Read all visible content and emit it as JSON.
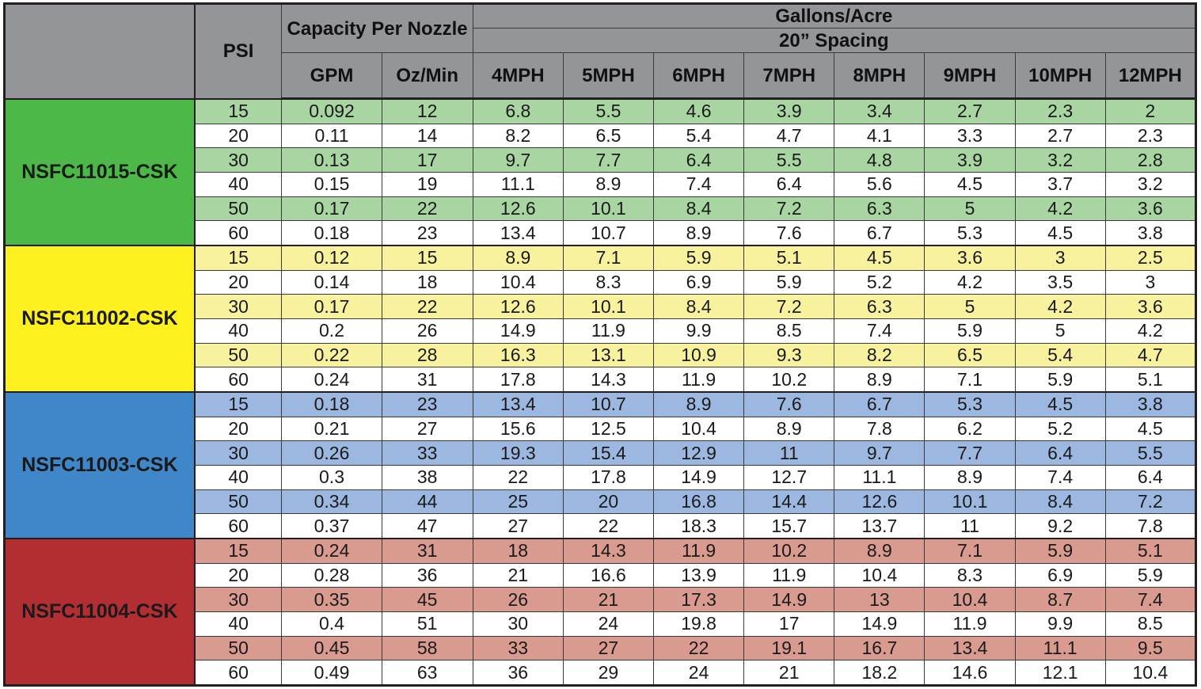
{
  "header": {
    "psi": "PSI",
    "capacity": "Capacity Per Nozzle",
    "gallons": "Gallons/Acre",
    "spacing": "20” Spacing",
    "gpm": "GPM",
    "oz_min": "Oz/Min",
    "speeds": [
      "4MPH",
      "5MPH",
      "6MPH",
      "7MPH",
      "8MPH",
      "9MPH",
      "10MPH",
      "12MPH"
    ]
  },
  "groups": [
    {
      "name": "NSFC11015-CSK",
      "color": "#4cb848",
      "tint": "#a8d5a2",
      "rows": [
        {
          "psi": "15",
          "gpm": "0.092",
          "oz": "12",
          "gpa": [
            "6.8",
            "5.5",
            "4.6",
            "3.9",
            "3.4",
            "2.7",
            "2.3",
            "2"
          ]
        },
        {
          "psi": "20",
          "gpm": "0.11",
          "oz": "14",
          "gpa": [
            "8.2",
            "6.5",
            "5.4",
            "4.7",
            "4.1",
            "3.3",
            "2.7",
            "2.3"
          ]
        },
        {
          "psi": "30",
          "gpm": "0.13",
          "oz": "17",
          "gpa": [
            "9.7",
            "7.7",
            "6.4",
            "5.5",
            "4.8",
            "3.9",
            "3.2",
            "2.8"
          ]
        },
        {
          "psi": "40",
          "gpm": "0.15",
          "oz": "19",
          "gpa": [
            "11.1",
            "8.9",
            "7.4",
            "6.4",
            "5.6",
            "4.5",
            "3.7",
            "3.2"
          ]
        },
        {
          "psi": "50",
          "gpm": "0.17",
          "oz": "22",
          "gpa": [
            "12.6",
            "10.1",
            "8.4",
            "7.2",
            "6.3",
            "5",
            "4.2",
            "3.6"
          ]
        },
        {
          "psi": "60",
          "gpm": "0.18",
          "oz": "23",
          "gpa": [
            "13.4",
            "10.7",
            "8.9",
            "7.6",
            "6.7",
            "5.3",
            "4.5",
            "3.8"
          ]
        }
      ]
    },
    {
      "name": "NSFC11002-CSK",
      "color": "#fdf01e",
      "tint": "#f8f29f",
      "rows": [
        {
          "psi": "15",
          "gpm": "0.12",
          "oz": "15",
          "gpa": [
            "8.9",
            "7.1",
            "5.9",
            "5.1",
            "4.5",
            "3.6",
            "3",
            "2.5"
          ]
        },
        {
          "psi": "20",
          "gpm": "0.14",
          "oz": "18",
          "gpa": [
            "10.4",
            "8.3",
            "6.9",
            "5.9",
            "5.2",
            "4.2",
            "3.5",
            "3"
          ]
        },
        {
          "psi": "30",
          "gpm": "0.17",
          "oz": "22",
          "gpa": [
            "12.6",
            "10.1",
            "8.4",
            "7.2",
            "6.3",
            "5",
            "4.2",
            "3.6"
          ]
        },
        {
          "psi": "40",
          "gpm": "0.2",
          "oz": "26",
          "gpa": [
            "14.9",
            "11.9",
            "9.9",
            "8.5",
            "7.4",
            "5.9",
            "5",
            "4.2"
          ]
        },
        {
          "psi": "50",
          "gpm": "0.22",
          "oz": "28",
          "gpa": [
            "16.3",
            "13.1",
            "10.9",
            "9.3",
            "8.2",
            "6.5",
            "5.4",
            "4.7"
          ]
        },
        {
          "psi": "60",
          "gpm": "0.24",
          "oz": "31",
          "gpa": [
            "17.8",
            "14.3",
            "11.9",
            "10.2",
            "8.9",
            "7.1",
            "5.9",
            "5.1"
          ]
        }
      ]
    },
    {
      "name": "NSFC11003-CSK",
      "color": "#3f87c8",
      "tint": "#9db8e0",
      "rows": [
        {
          "psi": "15",
          "gpm": "0.18",
          "oz": "23",
          "gpa": [
            "13.4",
            "10.7",
            "8.9",
            "7.6",
            "6.7",
            "5.3",
            "4.5",
            "3.8"
          ]
        },
        {
          "psi": "20",
          "gpm": "0.21",
          "oz": "27",
          "gpa": [
            "15.6",
            "12.5",
            "10.4",
            "8.9",
            "7.8",
            "6.2",
            "5.2",
            "4.5"
          ]
        },
        {
          "psi": "30",
          "gpm": "0.26",
          "oz": "33",
          "gpa": [
            "19.3",
            "15.4",
            "12.9",
            "11",
            "9.7",
            "7.7",
            "6.4",
            "5.5"
          ]
        },
        {
          "psi": "40",
          "gpm": "0.3",
          "oz": "38",
          "gpa": [
            "22",
            "17.8",
            "14.9",
            "12.7",
            "11.1",
            "8.9",
            "7.4",
            "6.4"
          ]
        },
        {
          "psi": "50",
          "gpm": "0.34",
          "oz": "44",
          "gpa": [
            "25",
            "20",
            "16.8",
            "14.4",
            "12.6",
            "10.1",
            "8.4",
            "7.2"
          ]
        },
        {
          "psi": "60",
          "gpm": "0.37",
          "oz": "47",
          "gpa": [
            "27",
            "22",
            "18.3",
            "15.7",
            "13.7",
            "11",
            "9.2",
            "7.8"
          ]
        }
      ]
    },
    {
      "name": "NSFC11004-CSK",
      "color": "#b22e32",
      "tint": "#d99a90",
      "rows": [
        {
          "psi": "15",
          "gpm": "0.24",
          "oz": "31",
          "gpa": [
            "18",
            "14.3",
            "11.9",
            "10.2",
            "8.9",
            "7.1",
            "5.9",
            "5.1"
          ]
        },
        {
          "psi": "20",
          "gpm": "0.28",
          "oz": "36",
          "gpa": [
            "21",
            "16.6",
            "13.9",
            "11.9",
            "10.4",
            "8.3",
            "6.9",
            "5.9"
          ]
        },
        {
          "psi": "30",
          "gpm": "0.35",
          "oz": "45",
          "gpa": [
            "26",
            "21",
            "17.3",
            "14.9",
            "13",
            "10.4",
            "8.7",
            "7.4"
          ]
        },
        {
          "psi": "40",
          "gpm": "0.4",
          "oz": "51",
          "gpa": [
            "30",
            "24",
            "19.8",
            "17",
            "14.9",
            "11.9",
            "9.9",
            "8.5"
          ]
        },
        {
          "psi": "50",
          "gpm": "0.45",
          "oz": "58",
          "gpa": [
            "33",
            "27",
            "22",
            "19.1",
            "16.7",
            "13.4",
            "11.1",
            "9.5"
          ]
        },
        {
          "psi": "60",
          "gpm": "0.49",
          "oz": "63",
          "gpa": [
            "36",
            "29",
            "24",
            "21",
            "18.2",
            "14.6",
            "12.1",
            "10.4"
          ]
        }
      ]
    }
  ]
}
